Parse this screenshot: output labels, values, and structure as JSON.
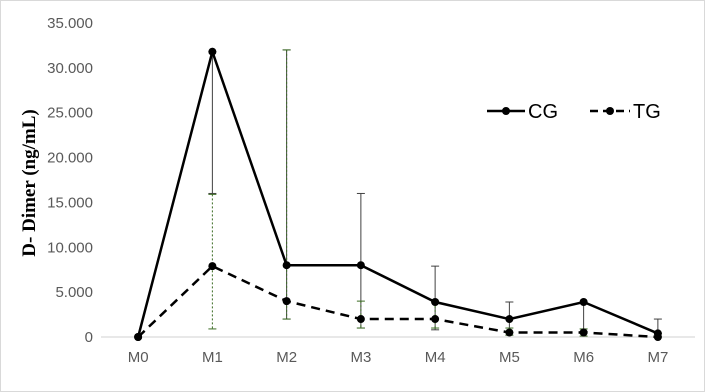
{
  "chart_data": {
    "type": "line",
    "title": "",
    "xlabel": "",
    "ylabel": "D- Dimer  (ng/mL)",
    "categories": [
      "M0",
      "M1",
      "M2",
      "M3",
      "M4",
      "M5",
      "M6",
      "M7"
    ],
    "yticks": [
      "0",
      "5.000",
      "10.000",
      "15.000",
      "20.000",
      "25.000",
      "30.000",
      "35.000"
    ],
    "ylim": [
      0,
      35000
    ],
    "grid": false,
    "legend_position": "top-right",
    "series": [
      {
        "name": "CG",
        "line_style": "solid",
        "color": "#000000",
        "values": [
          0,
          31800,
          8000,
          8000,
          3900,
          2000,
          3900,
          400
        ],
        "error_high": [
          null,
          31800,
          32000,
          16000,
          7900,
          3900,
          3900,
          2000
        ],
        "error_low": [
          null,
          16000,
          2000,
          1000,
          800,
          500,
          600,
          0
        ]
      },
      {
        "name": "TG",
        "line_style": "dashed",
        "color": "#000000",
        "values": [
          0,
          7900,
          4000,
          2000,
          2000,
          500,
          500,
          0
        ],
        "error_high": [
          null,
          15900,
          32000,
          4000,
          3900,
          1000,
          900,
          400
        ],
        "error_low": [
          null,
          900,
          2000,
          1000,
          1000,
          200,
          100,
          0
        ]
      }
    ]
  }
}
